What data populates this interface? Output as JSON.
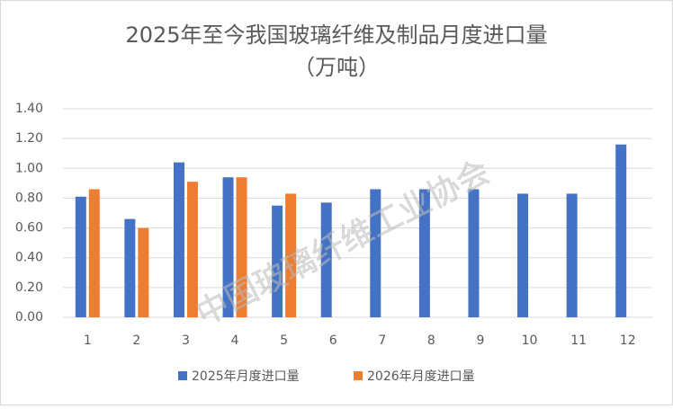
{
  "chart_data": {
    "type": "bar",
    "title": [
      "2025年至今我国玻璃纤维及制品月度进口量",
      "（万吨）"
    ],
    "watermark": "中国玻璃纤维工业协会",
    "categories": [
      "1",
      "2",
      "3",
      "4",
      "5",
      "6",
      "7",
      "8",
      "9",
      "10",
      "11",
      "12"
    ],
    "series": [
      {
        "name": "2025年月度进口量",
        "color": "#4472c4",
        "values": [
          0.81,
          0.66,
          1.04,
          0.94,
          0.75,
          0.77,
          0.86,
          0.86,
          0.86,
          0.83,
          0.83,
          1.16
        ]
      },
      {
        "name": "2026年月度进口量",
        "color": "#ed7d31",
        "values": [
          0.86,
          0.6,
          0.91,
          0.94,
          0.83,
          null,
          null,
          null,
          null,
          null,
          null,
          null
        ]
      }
    ],
    "ylim": [
      0,
      1.4
    ],
    "yticks": [
      {
        "value": 0,
        "label": "0.00"
      },
      {
        "value": 0.2,
        "label": "0.20"
      },
      {
        "value": 0.4,
        "label": "0.40"
      },
      {
        "value": 0.6,
        "label": "0.60"
      },
      {
        "value": 0.8,
        "label": "0.80"
      },
      {
        "value": 1.0,
        "label": "1.00"
      },
      {
        "value": 1.2,
        "label": "1.20"
      },
      {
        "value": 1.4,
        "label": "1.40"
      }
    ],
    "grid": true,
    "legend": "bottom"
  }
}
